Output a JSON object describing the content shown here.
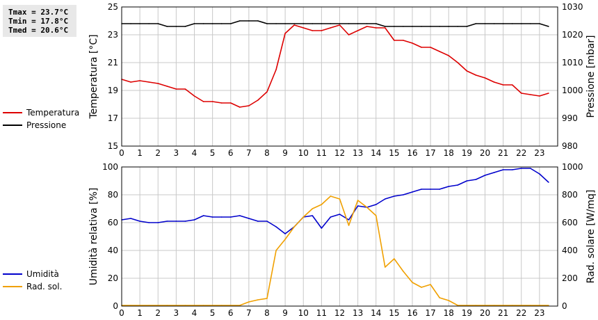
{
  "stats": {
    "tmax": "Tmax = 23.7°C",
    "tmin": "Tmin = 17.8°C",
    "tmed": "Tmed = 20.6°C"
  },
  "legend_top": [
    {
      "label": "Temperatura",
      "color": "#dd0000"
    },
    {
      "label": "Pressione",
      "color": "#000000"
    }
  ],
  "legend_bottom": [
    {
      "label": "Umidità",
      "color": "#0000cc"
    },
    {
      "label": "Rad. sol.",
      "color": "#f0a000"
    }
  ],
  "chart_data": [
    {
      "type": "line",
      "xlim": [
        0,
        24
      ],
      "x_ticks": [
        "0",
        "1",
        "2",
        "3",
        "4",
        "5",
        "6",
        "7",
        "8",
        "9",
        "10",
        "11",
        "12",
        "13",
        "14",
        "15",
        "16",
        "17",
        "18",
        "19",
        "20",
        "21",
        "22",
        "23"
      ],
      "grid": true,
      "left_axis": {
        "label": "Temperatura [°C]",
        "ylim": [
          15,
          25
        ],
        "ticks": [
          "15",
          "17",
          "19",
          "21",
          "23",
          "25"
        ]
      },
      "right_axis": {
        "label": "Pressione [mbar]",
        "ylim": [
          980,
          1030
        ],
        "ticks": [
          "980",
          "990",
          "1000",
          "1010",
          "1020",
          "1030"
        ]
      },
      "series": [
        {
          "name": "Temperatura",
          "axis": "left",
          "color": "#dd0000",
          "x": [
            0,
            0.5,
            1,
            1.5,
            2,
            2.5,
            3,
            3.5,
            4,
            4.5,
            5,
            5.5,
            6,
            6.5,
            7,
            7.5,
            8,
            8.5,
            9,
            9.5,
            10,
            10.5,
            11,
            11.5,
            12,
            12.5,
            13,
            13.5,
            14,
            14.5,
            15,
            15.5,
            16,
            16.5,
            17,
            17.5,
            18,
            18.5,
            19,
            19.5,
            20,
            20.5,
            21,
            21.5,
            22,
            22.5,
            23,
            23.5
          ],
          "y": [
            19.8,
            19.6,
            19.7,
            19.6,
            19.5,
            19.3,
            19.1,
            19.1,
            18.6,
            18.2,
            18.2,
            18.1,
            18.1,
            17.8,
            17.9,
            18.3,
            18.9,
            20.5,
            23.1,
            23.7,
            23.5,
            23.3,
            23.3,
            23.5,
            23.7,
            23.0,
            23.3,
            23.6,
            23.5,
            23.5,
            22.6,
            22.6,
            22.4,
            22.1,
            22.1,
            21.8,
            21.5,
            21.0,
            20.4,
            20.1,
            19.9,
            19.6,
            19.4,
            19.4,
            18.8,
            18.7,
            18.6,
            18.8
          ]
        },
        {
          "name": "Pressione",
          "axis": "right",
          "color": "#000000",
          "x": [
            0,
            0.5,
            1,
            1.5,
            2,
            2.5,
            3,
            3.5,
            4,
            4.5,
            5,
            5.5,
            6,
            6.5,
            7,
            7.5,
            8,
            8.5,
            9,
            9.5,
            10,
            10.5,
            11,
            11.5,
            12,
            12.5,
            13,
            13.5,
            14,
            14.5,
            15,
            15.5,
            16,
            16.5,
            17,
            17.5,
            18,
            18.5,
            19,
            19.5,
            20,
            20.5,
            21,
            21.5,
            22,
            22.5,
            23,
            23.5
          ],
          "y": [
            1024,
            1024,
            1024,
            1024,
            1024,
            1023,
            1023,
            1023,
            1024,
            1024,
            1024,
            1024,
            1024,
            1025,
            1025,
            1025,
            1024,
            1024,
            1024,
            1024,
            1024,
            1024,
            1024,
            1024,
            1024,
            1024,
            1024,
            1024,
            1024,
            1023,
            1023,
            1023,
            1023,
            1023,
            1023,
            1023,
            1023,
            1023,
            1023,
            1024,
            1024,
            1024,
            1024,
            1024,
            1024,
            1024,
            1024,
            1023
          ]
        }
      ]
    },
    {
      "type": "line",
      "xlim": [
        0,
        24
      ],
      "x_ticks": [
        "0",
        "1",
        "2",
        "3",
        "4",
        "5",
        "6",
        "7",
        "8",
        "9",
        "10",
        "11",
        "12",
        "13",
        "14",
        "15",
        "16",
        "17",
        "18",
        "19",
        "20",
        "21",
        "22",
        "23"
      ],
      "grid": true,
      "left_axis": {
        "label": "Umidità relativa [%]",
        "ylim": [
          0,
          100
        ],
        "ticks": [
          "0",
          "20",
          "40",
          "60",
          "80",
          "100"
        ]
      },
      "right_axis": {
        "label": "Rad. solare [W/mq]",
        "ylim": [
          0,
          1000
        ],
        "ticks": [
          "0",
          "200",
          "400",
          "600",
          "800",
          "1000"
        ]
      },
      "series": [
        {
          "name": "Umidità",
          "axis": "left",
          "color": "#0000cc",
          "x": [
            0,
            0.5,
            1,
            1.5,
            2,
            2.5,
            3,
            3.5,
            4,
            4.5,
            5,
            5.5,
            6,
            6.5,
            7,
            7.5,
            8,
            8.5,
            9,
            9.5,
            10,
            10.5,
            11,
            11.5,
            12,
            12.5,
            13,
            13.5,
            14,
            14.5,
            15,
            15.5,
            16,
            16.5,
            17,
            17.5,
            18,
            18.5,
            19,
            19.5,
            20,
            20.5,
            21,
            21.5,
            22,
            22.5,
            23,
            23.5
          ],
          "y": [
            62,
            63,
            61,
            60,
            60,
            61,
            61,
            61,
            62,
            65,
            64,
            64,
            64,
            65,
            63,
            61,
            61,
            57,
            52,
            57,
            64,
            65,
            56,
            64,
            66,
            62,
            72,
            71,
            73,
            77,
            79,
            80,
            82,
            84,
            84,
            84,
            86,
            87,
            90,
            91,
            94,
            96,
            98,
            98,
            99,
            99,
            95,
            89
          ]
        },
        {
          "name": "Rad. sol.",
          "axis": "right",
          "color": "#f0a000",
          "x": [
            0,
            0.5,
            1,
            1.5,
            2,
            2.5,
            3,
            3.5,
            4,
            4.5,
            5,
            5.5,
            6,
            6.5,
            7,
            7.5,
            8,
            8.5,
            9,
            9.5,
            10,
            10.5,
            11,
            11.5,
            12,
            12.5,
            13,
            13.5,
            14,
            14.5,
            15,
            15.5,
            16,
            16.5,
            17,
            17.5,
            18,
            18.5,
            19,
            19.5,
            20,
            20.5,
            21,
            21.5,
            22,
            22.5,
            23,
            23.5
          ],
          "y": [
            5,
            5,
            5,
            5,
            5,
            5,
            5,
            5,
            5,
            5,
            5,
            5,
            5,
            5,
            30,
            45,
            55,
            400,
            480,
            570,
            640,
            700,
            730,
            790,
            770,
            580,
            760,
            710,
            650,
            280,
            340,
            250,
            170,
            135,
            155,
            60,
            40,
            5,
            5,
            5,
            5,
            5,
            5,
            5,
            5,
            5,
            5,
            5
          ]
        }
      ]
    }
  ]
}
